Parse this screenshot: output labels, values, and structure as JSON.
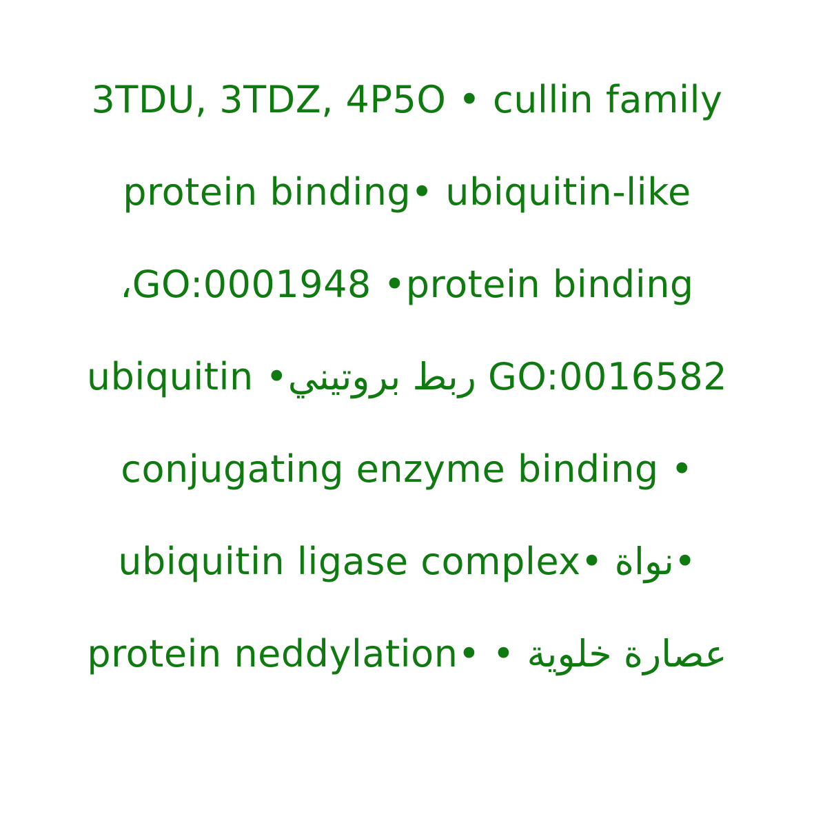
{
  "text_color": "#0f7a10",
  "background_color": "#ffffff",
  "lines": [
    "3TDU, 3TDZ, 4P5O • cullin family",
    "protein binding• ubiquitin-like",
    "،GO:0001948 •protein binding",
    "ubiquitin •ربط بروتيني GO:0016582",
    "conjugating enzyme binding •",
    "•نواة •ubiquitin ligase complex",
    "protein neddylation• • عصارة خلوية"
  ]
}
